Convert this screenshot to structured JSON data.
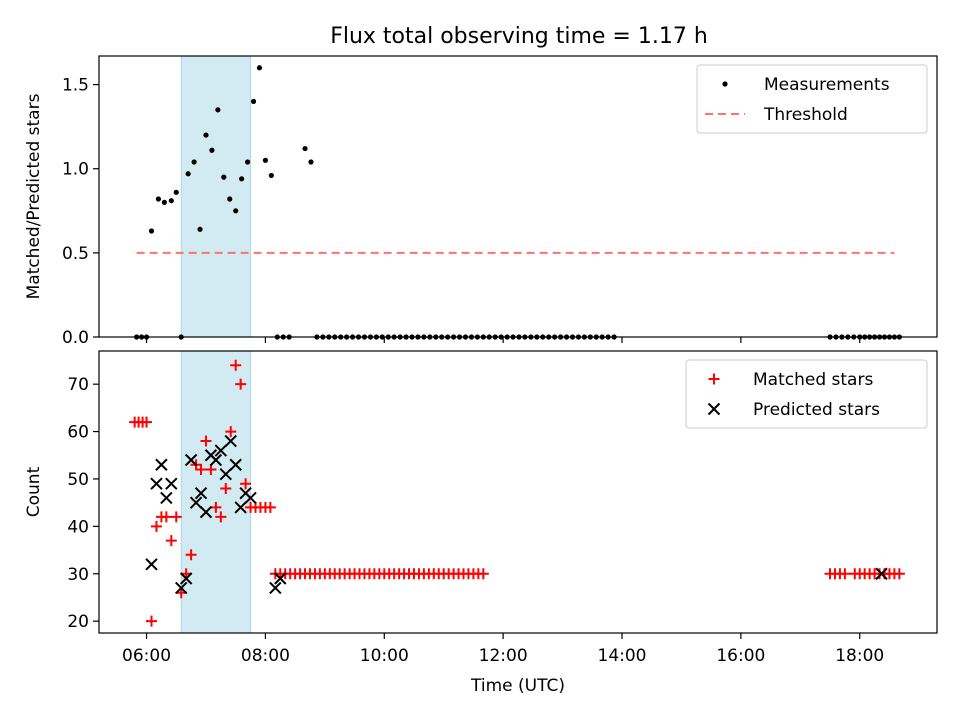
{
  "title": "Flux total observing time = 1.17 h",
  "colors": {
    "measurement": "#000000",
    "threshold": "#ff7070",
    "matched": "#ff0000",
    "predicted": "#000000",
    "shade": "#add8e6"
  },
  "chart_data": [
    {
      "type": "scatter",
      "ylabel": "Matched/Predicted stars",
      "xlim_hours": [
        5.2,
        19.3
      ],
      "ylim": [
        0,
        1.67
      ],
      "yticks": [
        0.0,
        0.5,
        1.0,
        1.5
      ],
      "ytick_labels": [
        "0.0",
        "0.5",
        "1.0",
        "1.5"
      ],
      "legend": {
        "position": "upper right",
        "entries": [
          "Measurements",
          "Threshold"
        ]
      },
      "shaded_interval": [
        "06:35",
        "07:45"
      ],
      "threshold": {
        "name": "Threshold",
        "value": 0.5,
        "x_from": "05:50",
        "x_to": "18:35"
      },
      "series": [
        {
          "name": "Measurements",
          "marker": "dot",
          "points": [
            [
              "05:50",
              0
            ],
            [
              "05:55",
              0
            ],
            [
              "06:00",
              0
            ],
            [
              "06:05",
              0.63
            ],
            [
              "06:12",
              0.82
            ],
            [
              "06:18",
              0.8
            ],
            [
              "06:25",
              0.81
            ],
            [
              "06:30",
              0.86
            ],
            [
              "06:35",
              0
            ],
            [
              "06:42",
              0.97
            ],
            [
              "06:48",
              1.04
            ],
            [
              "06:54",
              0.64
            ],
            [
              "07:00",
              1.2
            ],
            [
              "07:06",
              1.11
            ],
            [
              "07:12",
              1.35
            ],
            [
              "07:18",
              0.95
            ],
            [
              "07:24",
              0.82
            ],
            [
              "07:30",
              0.75
            ],
            [
              "07:36",
              0.94
            ],
            [
              "07:42",
              1.04
            ],
            [
              "07:48",
              1.4
            ],
            [
              "07:54",
              1.6
            ],
            [
              "08:00",
              1.05
            ],
            [
              "08:06",
              0.96
            ],
            [
              "08:12",
              0
            ],
            [
              "08:18",
              0
            ],
            [
              "08:24",
              0
            ],
            [
              "08:40",
              1.12
            ],
            [
              "08:46",
              1.04
            ],
            [
              "08:52",
              0
            ],
            [
              "08:58",
              0
            ],
            [
              "09:04",
              0
            ],
            [
              "09:10",
              0
            ],
            [
              "09:16",
              0
            ],
            [
              "09:22",
              0
            ],
            [
              "09:28",
              0
            ],
            [
              "09:34",
              0
            ],
            [
              "09:40",
              0
            ],
            [
              "09:46",
              0
            ],
            [
              "09:52",
              0
            ],
            [
              "09:58",
              0
            ],
            [
              "10:04",
              0
            ],
            [
              "10:10",
              0
            ],
            [
              "10:16",
              0
            ],
            [
              "10:22",
              0
            ],
            [
              "10:28",
              0
            ],
            [
              "10:34",
              0
            ],
            [
              "10:40",
              0
            ],
            [
              "10:46",
              0
            ],
            [
              "10:52",
              0
            ],
            [
              "10:58",
              0
            ],
            [
              "11:04",
              0
            ],
            [
              "11:10",
              0
            ],
            [
              "11:16",
              0
            ],
            [
              "11:22",
              0
            ],
            [
              "11:28",
              0
            ],
            [
              "11:34",
              0
            ],
            [
              "11:40",
              0
            ],
            [
              "11:46",
              0
            ],
            [
              "11:52",
              0
            ],
            [
              "11:58",
              0
            ],
            [
              "12:04",
              0
            ],
            [
              "12:10",
              0
            ],
            [
              "12:16",
              0
            ],
            [
              "12:22",
              0
            ],
            [
              "12:28",
              0
            ],
            [
              "12:34",
              0
            ],
            [
              "12:40",
              0
            ],
            [
              "12:46",
              0
            ],
            [
              "12:52",
              0
            ],
            [
              "12:58",
              0
            ],
            [
              "13:04",
              0
            ],
            [
              "13:10",
              0
            ],
            [
              "13:16",
              0
            ],
            [
              "13:22",
              0
            ],
            [
              "13:28",
              0
            ],
            [
              "13:34",
              0
            ],
            [
              "13:40",
              0
            ],
            [
              "13:46",
              0
            ],
            [
              "13:52",
              0
            ],
            [
              "17:30",
              0
            ],
            [
              "17:36",
              0
            ],
            [
              "17:42",
              0
            ],
            [
              "17:48",
              0
            ],
            [
              "17:54",
              0
            ],
            [
              "18:00",
              0
            ],
            [
              "18:05",
              0
            ],
            [
              "18:10",
              0
            ],
            [
              "18:15",
              0
            ],
            [
              "18:20",
              0
            ],
            [
              "18:25",
              0
            ],
            [
              "18:30",
              0
            ],
            [
              "18:35",
              0
            ],
            [
              "18:40",
              0
            ]
          ]
        }
      ]
    },
    {
      "type": "scatter",
      "xlabel": "Time (UTC)",
      "ylabel": "Count",
      "xlim_hours": [
        5.2,
        19.3
      ],
      "ylim": [
        17.5,
        77
      ],
      "yticks": [
        20,
        30,
        40,
        50,
        60,
        70
      ],
      "ytick_labels": [
        "20",
        "30",
        "40",
        "50",
        "60",
        "70"
      ],
      "xticks_hours": [
        6,
        8,
        10,
        12,
        14,
        16,
        18
      ],
      "xtick_labels": [
        "06:00",
        "08:00",
        "10:00",
        "12:00",
        "14:00",
        "16:00",
        "18:00"
      ],
      "legend": {
        "position": "upper right",
        "entries": [
          "Matched stars",
          "Predicted stars"
        ]
      },
      "shaded_interval": [
        "06:35",
        "07:45"
      ],
      "series": [
        {
          "name": "Matched stars",
          "marker": "plus",
          "points": [
            [
              "05:48",
              62
            ],
            [
              "05:52",
              62
            ],
            [
              "05:56",
              62
            ],
            [
              "06:00",
              62
            ],
            [
              "06:05",
              20
            ],
            [
              "06:10",
              40
            ],
            [
              "06:15",
              42
            ],
            [
              "06:20",
              42
            ],
            [
              "06:25",
              37
            ],
            [
              "06:30",
              42
            ],
            [
              "06:35",
              26
            ],
            [
              "06:40",
              30
            ],
            [
              "06:45",
              34
            ],
            [
              "06:50",
              53
            ],
            [
              "06:55",
              52
            ],
            [
              "07:00",
              58
            ],
            [
              "07:05",
              52
            ],
            [
              "07:10",
              44
            ],
            [
              "07:15",
              42
            ],
            [
              "07:20",
              48
            ],
            [
              "07:25",
              60
            ],
            [
              "07:30",
              74
            ],
            [
              "07:35",
              70
            ],
            [
              "07:40",
              49
            ],
            [
              "07:45",
              44
            ],
            [
              "07:50",
              44
            ],
            [
              "07:55",
              44
            ],
            [
              "08:00",
              44
            ],
            [
              "08:05",
              44
            ],
            [
              "08:10",
              30
            ],
            [
              "08:15",
              30
            ],
            [
              "08:20",
              30
            ],
            [
              "08:25",
              30
            ],
            [
              "08:30",
              30
            ],
            [
              "08:35",
              30
            ],
            [
              "08:40",
              30
            ],
            [
              "08:45",
              30
            ],
            [
              "08:50",
              30
            ],
            [
              "08:55",
              30
            ],
            [
              "09:00",
              30
            ],
            [
              "09:05",
              30
            ],
            [
              "09:10",
              30
            ],
            [
              "09:15",
              30
            ],
            [
              "09:20",
              30
            ],
            [
              "09:25",
              30
            ],
            [
              "09:30",
              30
            ],
            [
              "09:35",
              30
            ],
            [
              "09:40",
              30
            ],
            [
              "09:45",
              30
            ],
            [
              "09:50",
              30
            ],
            [
              "09:55",
              30
            ],
            [
              "10:00",
              30
            ],
            [
              "10:05",
              30
            ],
            [
              "10:10",
              30
            ],
            [
              "10:15",
              30
            ],
            [
              "10:20",
              30
            ],
            [
              "10:25",
              30
            ],
            [
              "10:30",
              30
            ],
            [
              "10:35",
              30
            ],
            [
              "10:40",
              30
            ],
            [
              "10:45",
              30
            ],
            [
              "10:50",
              30
            ],
            [
              "10:55",
              30
            ],
            [
              "11:00",
              30
            ],
            [
              "11:05",
              30
            ],
            [
              "11:10",
              30
            ],
            [
              "11:15",
              30
            ],
            [
              "11:20",
              30
            ],
            [
              "11:25",
              30
            ],
            [
              "11:30",
              30
            ],
            [
              "11:35",
              30
            ],
            [
              "11:40",
              30
            ],
            [
              "17:30",
              30
            ],
            [
              "17:35",
              30
            ],
            [
              "17:40",
              30
            ],
            [
              "17:45",
              30
            ],
            [
              "17:55",
              30
            ],
            [
              "18:00",
              30
            ],
            [
              "18:05",
              30
            ],
            [
              "18:10",
              30
            ],
            [
              "18:15",
              30
            ],
            [
              "18:20",
              30
            ],
            [
              "18:25",
              30
            ],
            [
              "18:30",
              30
            ],
            [
              "18:35",
              30
            ],
            [
              "18:40",
              30
            ]
          ]
        },
        {
          "name": "Predicted stars",
          "marker": "x",
          "points": [
            [
              "06:05",
              32
            ],
            [
              "06:10",
              49
            ],
            [
              "06:15",
              53
            ],
            [
              "06:20",
              46
            ],
            [
              "06:25",
              49
            ],
            [
              "06:35",
              27
            ],
            [
              "06:40",
              29
            ],
            [
              "06:45",
              54
            ],
            [
              "06:50",
              45
            ],
            [
              "06:55",
              47
            ],
            [
              "07:00",
              43
            ],
            [
              "07:05",
              55
            ],
            [
              "07:10",
              54
            ],
            [
              "07:15",
              56
            ],
            [
              "07:20",
              51
            ],
            [
              "07:25",
              58
            ],
            [
              "07:30",
              53
            ],
            [
              "07:35",
              44
            ],
            [
              "07:40",
              47
            ],
            [
              "07:45",
              46
            ],
            [
              "08:10",
              27
            ],
            [
              "08:15",
              29
            ],
            [
              "18:22",
              30
            ]
          ]
        }
      ]
    }
  ]
}
